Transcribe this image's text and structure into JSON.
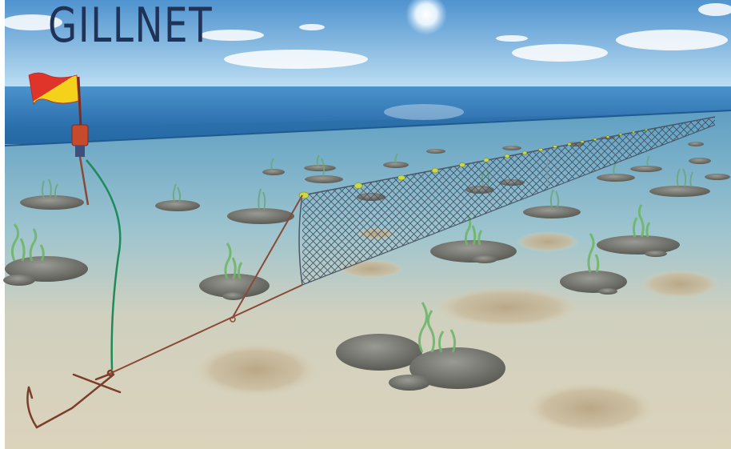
{
  "title": "GILLNET",
  "colors": {
    "title": "#1f3358",
    "sky_top": "#4f93cf",
    "sky_bottom": "#bfe0f3",
    "sea_surface": "#2f78b8",
    "water": "#7bb3cf",
    "seabed": "#d9d1b8",
    "flag_red": "#e0342b",
    "flag_yellow": "#f4d21c",
    "buoy_red": "#c84a2c",
    "buoy_line": "#1f8a5a",
    "anchor_rope": "#8a4a35",
    "net": "#3c4a5c",
    "float": "#c9d94a",
    "rock": "#7d7e78",
    "weed": "#7fb46a",
    "gravel": "#bfae8e"
  },
  "icons": [
    "flag-icon",
    "buoy-icon",
    "anchor-icon",
    "net-icon",
    "rock-icon",
    "seaweed-icon",
    "gravel-patch-icon",
    "sun-icon",
    "cloud-icon"
  ]
}
